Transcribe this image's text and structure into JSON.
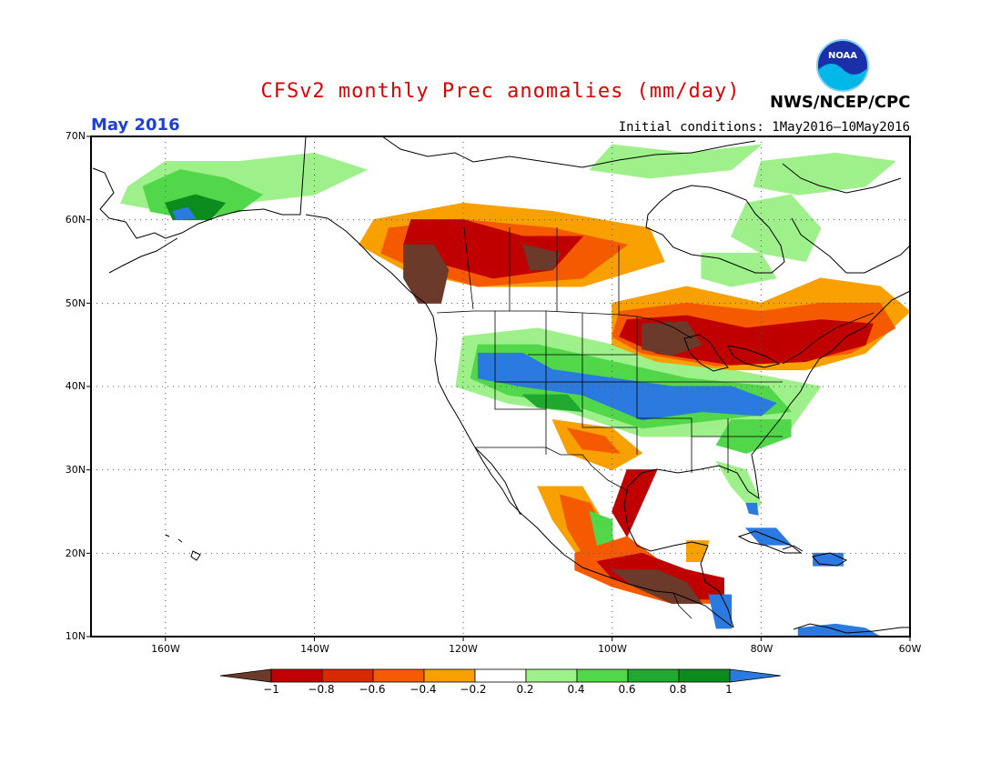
{
  "header": {
    "title": "CFSv2 monthly Prec anomalies (mm/day)",
    "period": "May 2016",
    "initial_conditions": "Initial conditions: 1May2016–10May2016",
    "agency": "NWS/NCEP/CPC",
    "logo_text": "NOAA"
  },
  "map": {
    "lat_labels": [
      "70N",
      "60N",
      "50N",
      "40N",
      "30N",
      "20N",
      "10N"
    ],
    "lon_labels": [
      "160W",
      "140W",
      "120W",
      "100W",
      "80W",
      "60W"
    ],
    "lat_range": [
      10,
      70
    ],
    "lon_range": [
      -170,
      -60
    ],
    "colors": {
      "below_-1": "#6b3a2a",
      "-1_-0.8": "#c00000",
      "-0.8_-0.6": "#d82a00",
      "-0.6_-0.4": "#f55a00",
      "-0.4_-0.2": "#f8a000",
      "0.2_0.4": "#9ef08a",
      "0.4_0.6": "#52d64a",
      "0.6_0.8": "#20a830",
      "0.8_1": "#0d8c1e",
      "above_1": "#2a7ae0"
    }
  },
  "colorbar": {
    "labels": [
      "−1",
      "−0.8",
      "−0.6",
      "−0.4",
      "−0.2",
      "0.2",
      "0.4",
      "0.6",
      "0.8",
      "1"
    ],
    "bins": [
      "#6b3a2a",
      "#c00000",
      "#d82a00",
      "#f55a00",
      "#f8a000",
      "#ffffff",
      "#9ef08a",
      "#52d64a",
      "#20a830",
      "#0d8c1e",
      "#2a7ae0"
    ]
  }
}
